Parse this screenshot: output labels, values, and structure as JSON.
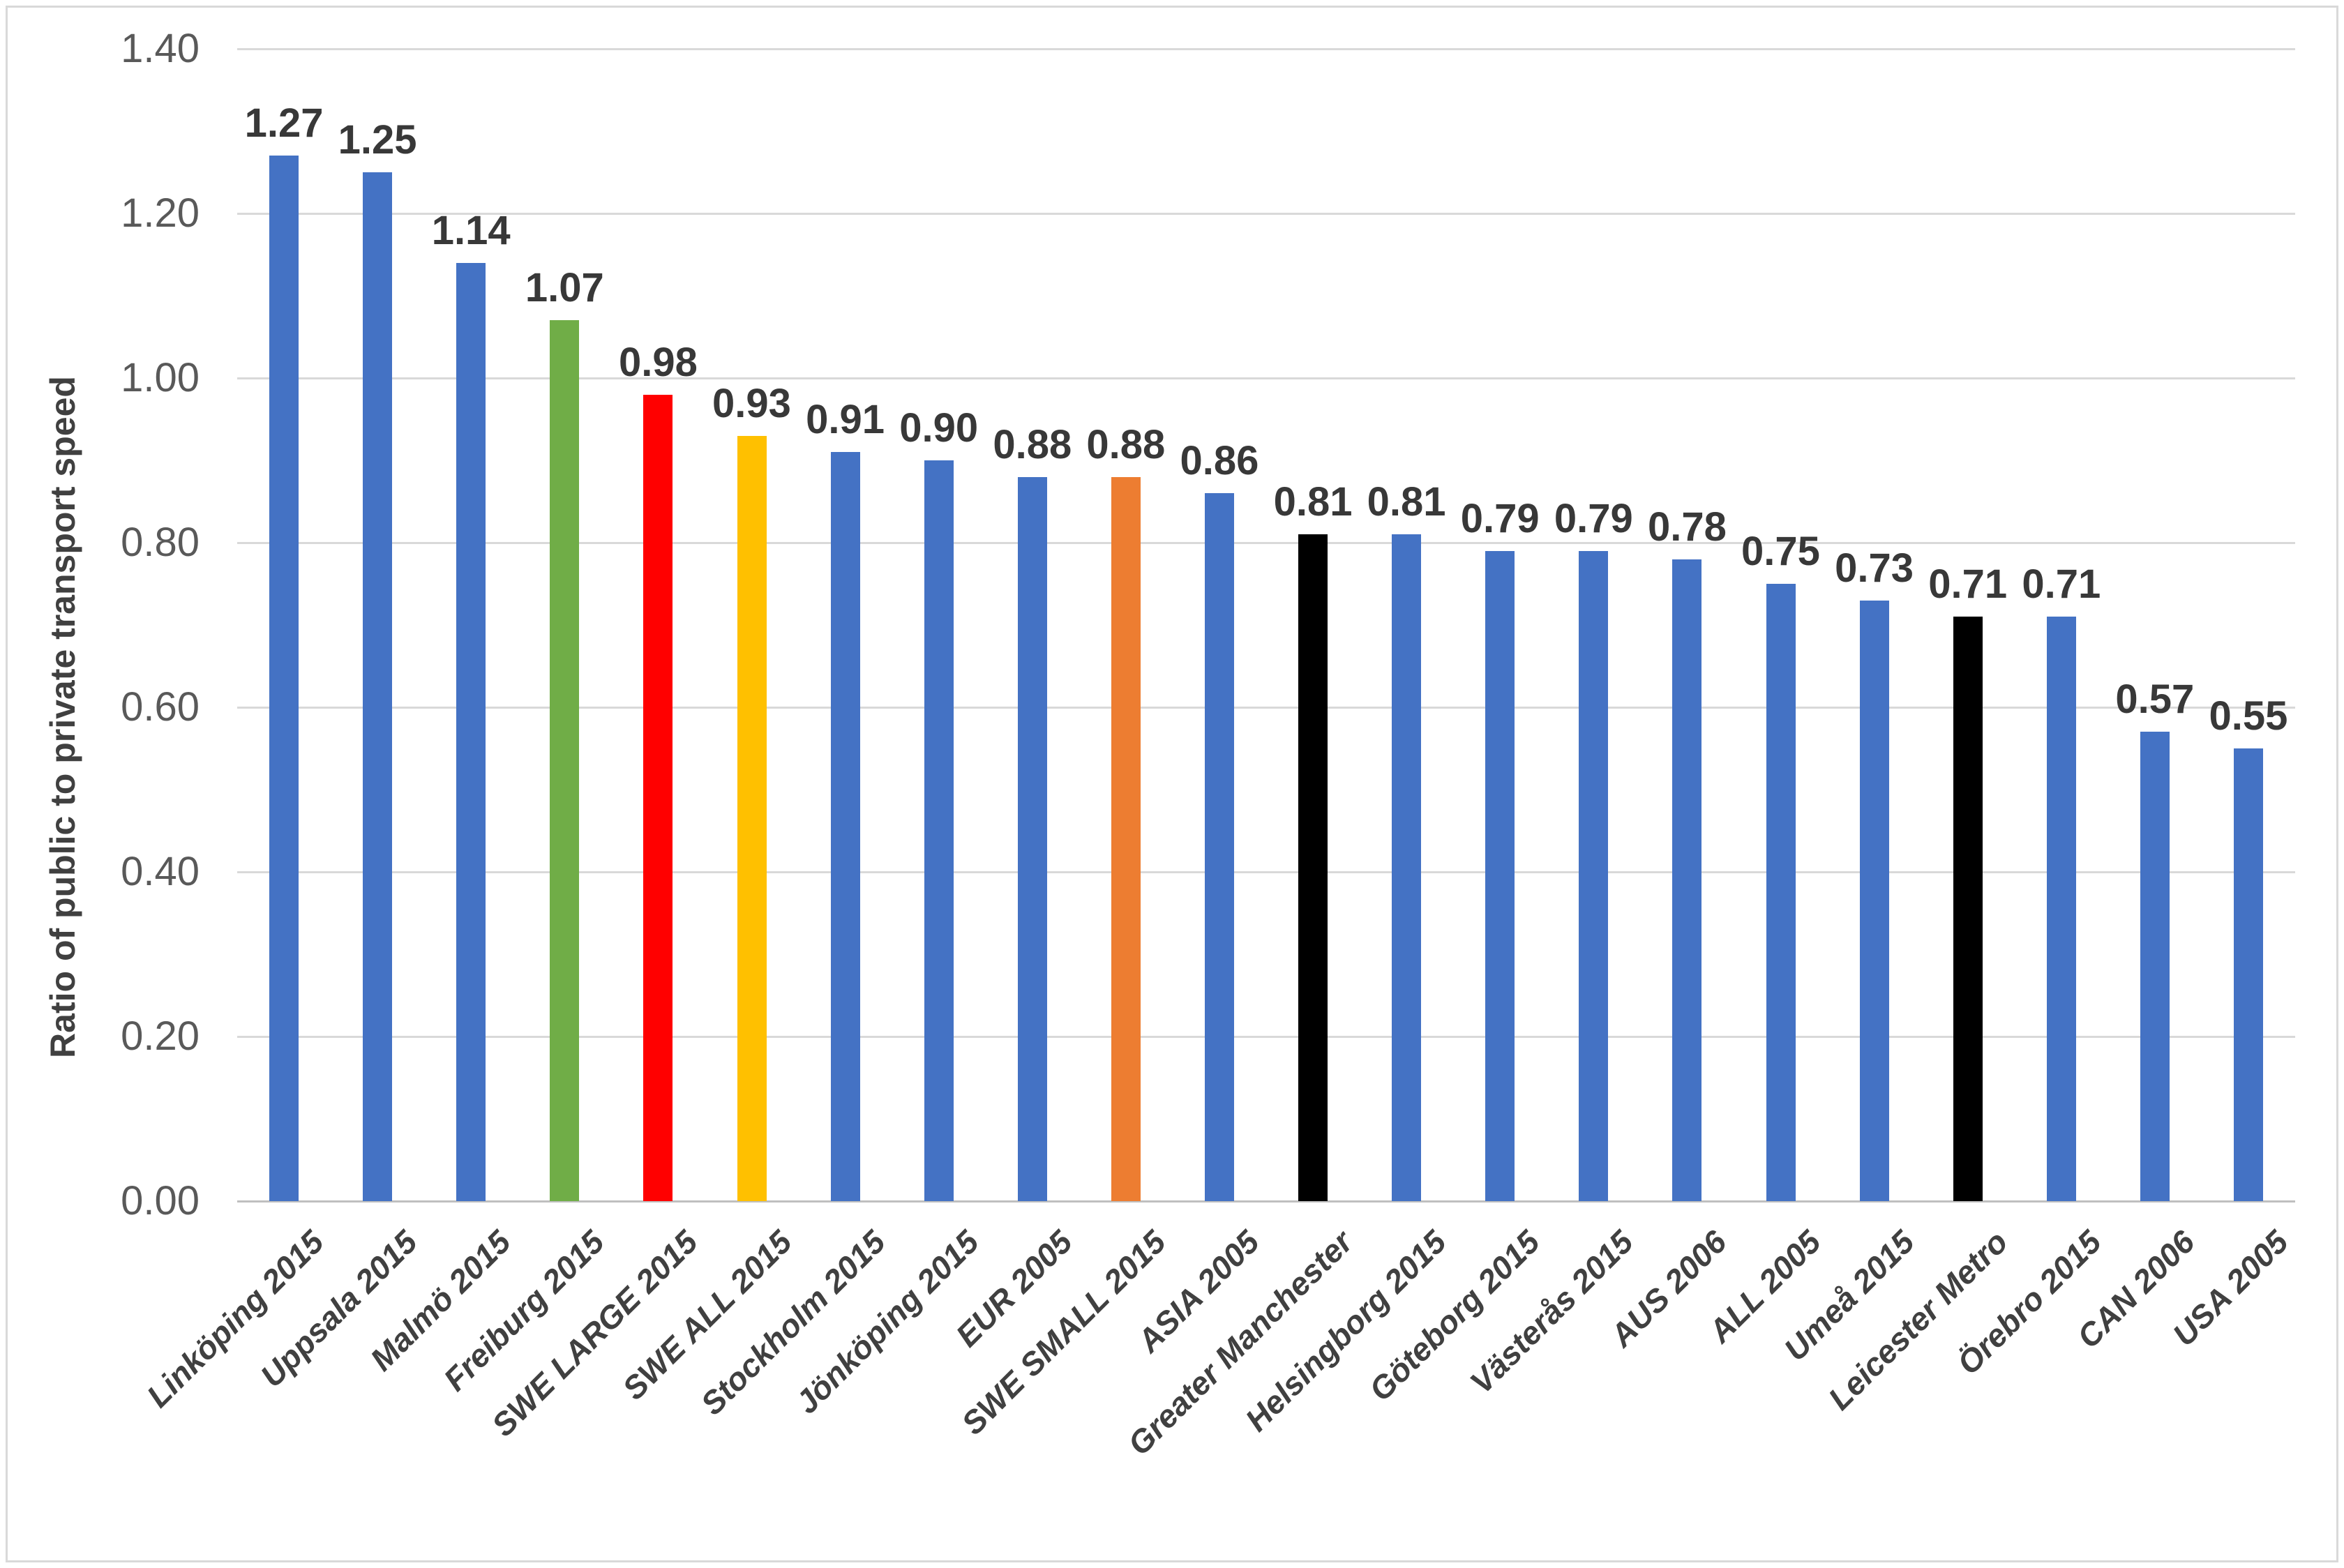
{
  "chart_data": {
    "type": "bar",
    "title": "",
    "xlabel": "",
    "ylabel": "Ratio of public to private transport speed",
    "ylim": [
      0,
      1.4
    ],
    "grid": true,
    "legend": false,
    "yticks": [
      {
        "value": 1.4,
        "label": "1.40"
      },
      {
        "value": 1.2,
        "label": "1.20"
      },
      {
        "value": 1.0,
        "label": "1.00"
      },
      {
        "value": 0.8,
        "label": "0.80"
      },
      {
        "value": 0.6,
        "label": "0.60"
      },
      {
        "value": 0.4,
        "label": "0.40"
      },
      {
        "value": 0.2,
        "label": "0.20"
      },
      {
        "value": 0.0,
        "label": "0.00"
      }
    ],
    "categories": [
      "Linköping 2015",
      "Uppsala 2015",
      "Malmö 2015",
      "Freiburg 2015",
      "SWE LARGE 2015",
      "SWE ALL 2015",
      "Stockholm 2015",
      "Jönköping 2015",
      "EUR 2005",
      "SWE SMALL 2015",
      "ASIA 2005",
      "Greater Manchester",
      "Helsingborg 2015",
      "Göteborg 2015",
      "Västerås 2015",
      "AUS 2006",
      "ALL 2005",
      "Umeå 2015",
      "Leicester Metro",
      "Örebro 2015",
      "CAN 2006",
      "USA 2005"
    ],
    "values": [
      1.27,
      1.25,
      1.14,
      1.07,
      0.98,
      0.93,
      0.91,
      0.9,
      0.88,
      0.88,
      0.86,
      0.81,
      0.81,
      0.79,
      0.79,
      0.78,
      0.75,
      0.73,
      0.71,
      0.71,
      0.57,
      0.55
    ],
    "value_labels": [
      "1.27",
      "1.25",
      "1.14",
      "1.07",
      "0.98",
      "0.93",
      "0.91",
      "0.90",
      "0.88",
      "0.88",
      "0.86",
      "0.81",
      "0.81",
      "0.79",
      "0.79",
      "0.78",
      "0.75",
      "0.73",
      "0.71",
      "0.71",
      "0.57",
      "0.55"
    ],
    "bar_colors": [
      "#4472C4",
      "#4472C4",
      "#4472C4",
      "#70AD47",
      "#FF0000",
      "#FFC000",
      "#4472C4",
      "#4472C4",
      "#4472C4",
      "#ED7D31",
      "#4472C4",
      "#000000",
      "#4472C4",
      "#4472C4",
      "#4472C4",
      "#4472C4",
      "#4472C4",
      "#4472C4",
      "#000000",
      "#4472C4",
      "#4472C4",
      "#4472C4"
    ]
  },
  "style": {
    "background": "#FFFFFF",
    "default_bar_color": "#4472C4",
    "grid_color": "#D9D9D9",
    "axis_line_color": "#BFBFBF",
    "tick_label_color": "#595959",
    "value_label_color": "#383838",
    "category_label_color": "#404040",
    "border_color": "#D9D9D9"
  }
}
